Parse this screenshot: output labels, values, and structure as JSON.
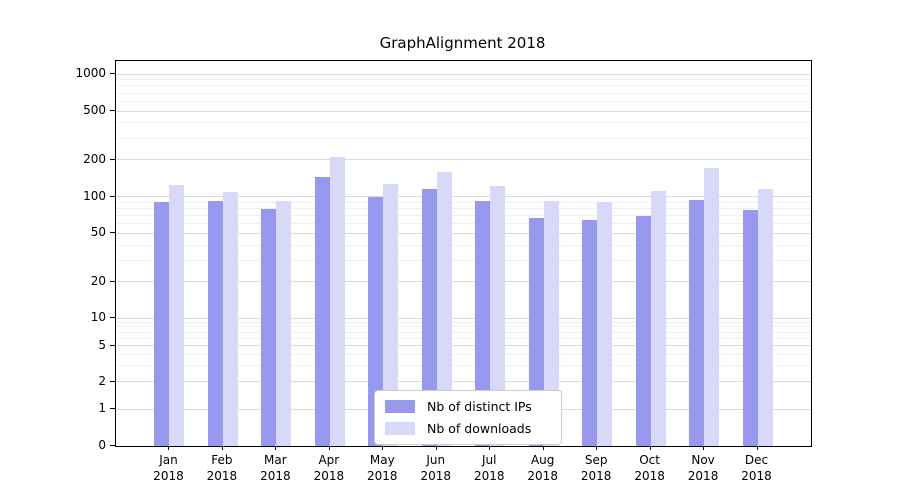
{
  "chart_data": {
    "type": "bar",
    "title": "GraphAlignment 2018",
    "categories": [
      "Jan 2018",
      "Feb 2018",
      "Mar 2018",
      "Apr 2018",
      "May 2018",
      "Jun 2018",
      "Jul 2018",
      "Aug 2018",
      "Sep 2018",
      "Oct 2018",
      "Nov 2018",
      "Dec 2018"
    ],
    "series": [
      {
        "name": "Nb of distinct IPs",
        "color": "#9898ee",
        "values": [
          90,
          92,
          80,
          145,
          100,
          115,
          92,
          67,
          64,
          70,
          95,
          78
        ]
      },
      {
        "name": "Nb of downloads",
        "color": "#d8d8f8",
        "values": [
          125,
          110,
          92,
          210,
          128,
          160,
          122,
          92,
          90,
          112,
          172,
          115
        ]
      }
    ],
    "y_ticks": [
      0,
      1,
      2,
      5,
      10,
      20,
      50,
      100,
      200,
      500,
      1000
    ],
    "yscale": "symlog",
    "ylim": [
      0,
      1000
    ],
    "grid": "horizontal major and minor",
    "legend_position": "lower center inside plot"
  }
}
